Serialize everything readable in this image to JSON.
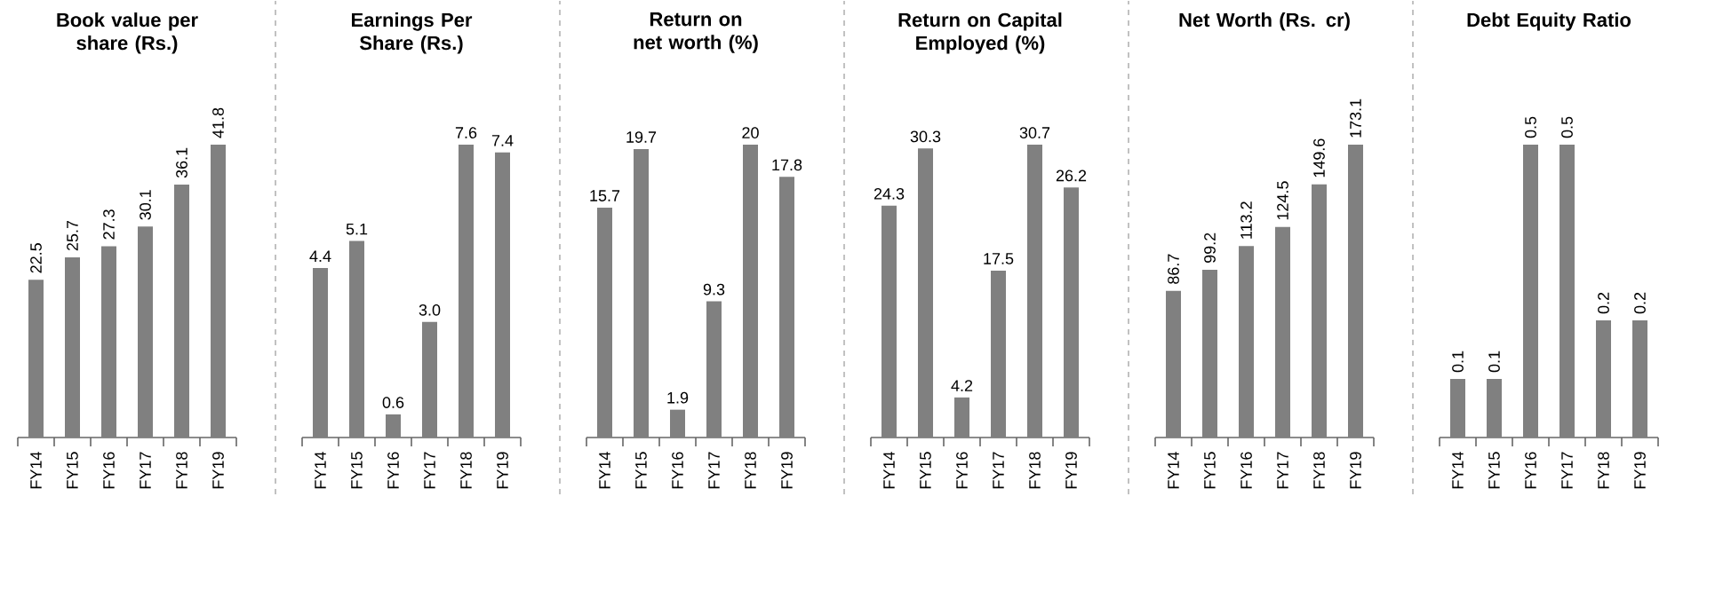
{
  "chart_data": [
    {
      "type": "bar",
      "title": "Book value per share (Rs.)",
      "categories": [
        "FY14",
        "FY15",
        "FY16",
        "FY17",
        "FY18",
        "FY19"
      ],
      "values": [
        22.5,
        25.7,
        27.3,
        30.1,
        36.1,
        41.8
      ],
      "color": "#808080",
      "data_labels": true
    },
    {
      "type": "bar",
      "title": "Earnings Per Share (Rs.)",
      "categories": [
        "FY14",
        "FY15",
        "FY16",
        "FY17",
        "FY18",
        "FY19"
      ],
      "values": [
        4.4,
        5.1,
        0.6,
        3.0,
        7.6,
        7.4
      ],
      "color": "#808080",
      "value_labels": [
        "4.4",
        "5.1",
        "0.6",
        "3.0",
        "7.6",
        "7.4"
      ]
    },
    {
      "type": "bar",
      "title": "Return on net worth (%)",
      "categories": [
        "FY14",
        "FY15",
        "FY16",
        "FY17",
        "FY18",
        "FY19"
      ],
      "values": [
        15.7,
        19.7,
        1.9,
        9.3,
        20,
        17.8
      ],
      "color": "#808080",
      "data_labels": true
    },
    {
      "type": "bar",
      "title": "Return on Capital Employed (%)",
      "categories": [
        "FY14",
        "FY15",
        "FY16",
        "FY17",
        "FY18",
        "FY19"
      ],
      "values": [
        24.3,
        30.3,
        4.2,
        17.5,
        30.7,
        26.2
      ],
      "color": "#808080",
      "data_labels": true
    },
    {
      "type": "bar",
      "title": "Net Worth (Rs. cr)",
      "categories": [
        "FY14",
        "FY15",
        "FY16",
        "FY17",
        "FY18",
        "FY19"
      ],
      "values": [
        86.7,
        99.2,
        113.2,
        124.5,
        149.6,
        173.1
      ],
      "color": "#808080",
      "data_labels": true
    },
    {
      "type": "bar",
      "title": "Debt Equity Ratio",
      "categories": [
        "FY14",
        "FY15",
        "FY16",
        "FY17",
        "FY18",
        "FY19"
      ],
      "values": [
        0.1,
        0.1,
        0.5,
        0.5,
        0.2,
        0.2
      ],
      "color": "#808080",
      "data_labels": true
    }
  ]
}
